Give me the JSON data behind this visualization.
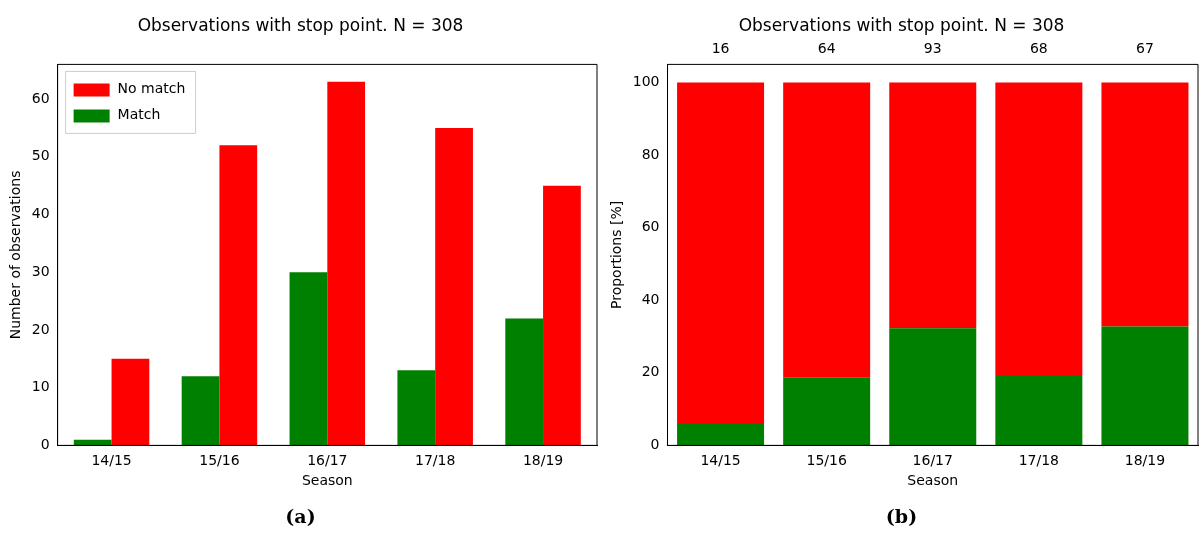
{
  "chart_data": [
    {
      "type": "bar",
      "title": "Observations with stop point. N = 308",
      "xlabel": "Season",
      "ylabel": "Number of observations",
      "categories": [
        "14/15",
        "15/16",
        "16/17",
        "17/18",
        "18/19"
      ],
      "series": [
        {
          "name": "Match",
          "color": "#008000",
          "values": [
            1,
            12,
            30,
            13,
            22
          ]
        },
        {
          "name": "No match",
          "color": "#ff0000",
          "values": [
            15,
            52,
            63,
            55,
            45
          ]
        }
      ],
      "ylim": [
        0,
        66
      ],
      "yticks": [
        0,
        10,
        20,
        30,
        40,
        50,
        60
      ],
      "grid": false,
      "legend": "top left",
      "annotations": [
        "(a)"
      ]
    },
    {
      "type": "bar",
      "stacked": true,
      "title": "Observations with stop point. N = 308",
      "xlabel": "Season",
      "ylabel": "Proportions [%]",
      "categories": [
        "14/15",
        "15/16",
        "16/17",
        "17/18",
        "18/19"
      ],
      "series": [
        {
          "color": "#008000",
          "values": [
            6.2,
            18.8,
            32.3,
            19.1,
            32.8
          ]
        },
        {
          "color": "#ff0000",
          "values": [
            93.8,
            81.2,
            67.7,
            80.9,
            67.2
          ]
        }
      ],
      "ylim": [
        0,
        105
      ],
      "yticks": [
        0,
        20,
        40,
        60,
        80,
        100
      ],
      "grid": false,
      "legend": false,
      "annotations": [
        "(b)",
        {
          "text": "16",
          "x": "14/15",
          "y": 100
        },
        {
          "text": "64",
          "x": "15/16",
          "y": 100
        },
        {
          "text": "93",
          "x": "16/17",
          "y": 100
        },
        {
          "text": "68",
          "x": "17/18",
          "y": 100
        },
        {
          "text": "67",
          "x": "18/19",
          "y": 100
        }
      ]
    }
  ]
}
